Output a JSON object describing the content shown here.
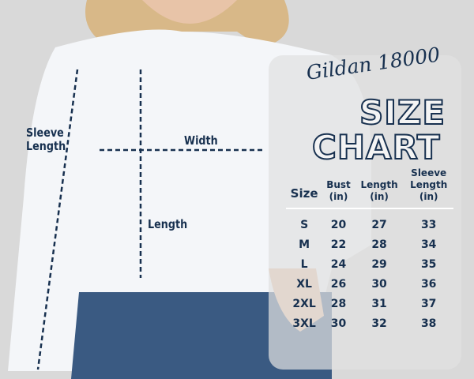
{
  "measure_labels": {
    "sleeve_length": "Sleeve\nLength",
    "width": "Width",
    "length": "Length"
  },
  "chart": {
    "brand": "Gildan 18000",
    "title_line1": "SIZE",
    "title_line2": "CHART",
    "headers": [
      "Size",
      "Bust\n(in)",
      "Length\n(in)",
      "Sleeve\nLength\n(in)"
    ],
    "rows": [
      [
        "S",
        "20",
        "27",
        "33"
      ],
      [
        "M",
        "22",
        "28",
        "34"
      ],
      [
        "L",
        "24",
        "29",
        "35"
      ],
      [
        "XL",
        "26",
        "30",
        "36"
      ],
      [
        "2XL",
        "28",
        "31",
        "37"
      ],
      [
        "3XL",
        "30",
        "32",
        "38"
      ]
    ]
  },
  "colors": {
    "text": "#17304f",
    "background": "#d9d9d9",
    "sweatshirt": "#f4f6f9",
    "jeans": "#3a5a82"
  }
}
